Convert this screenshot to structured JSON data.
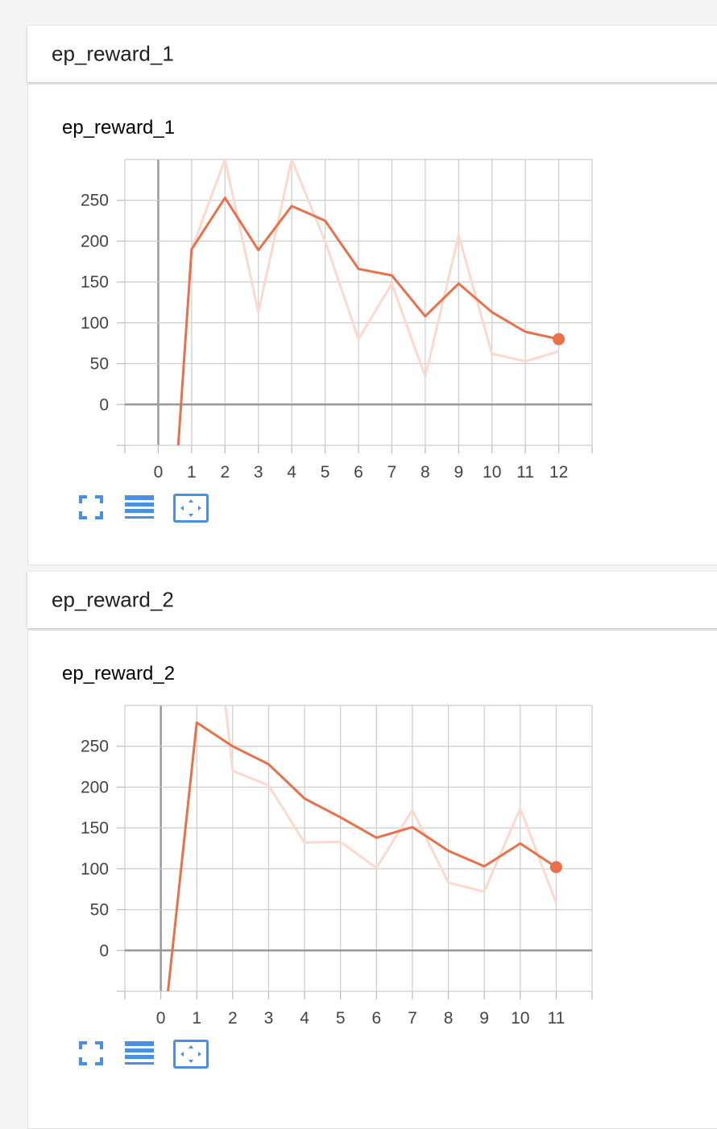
{
  "panels": [
    {
      "group_title": "ep_reward_1",
      "card_title": "ep_reward_1"
    },
    {
      "group_title": "ep_reward_2",
      "card_title": "ep_reward_2"
    }
  ],
  "colors": {
    "smoothed_line": "#e8714a",
    "raw_line": "#fcd9cd",
    "grid": "#cccccc",
    "zero_axis": "#999999",
    "toolbar_icon": "#4a90e2"
  },
  "toolbar_icons": [
    "fullscreen-icon",
    "data-table-icon",
    "fit-domain-icon"
  ],
  "chart_data": [
    {
      "type": "line",
      "title": "ep_reward_1",
      "xlim": [
        -1,
        13
      ],
      "ylim": [
        -50,
        300
      ],
      "x_ticks": [
        0,
        1,
        2,
        3,
        4,
        5,
        6,
        7,
        8,
        9,
        10,
        11,
        12
      ],
      "y_ticks": [
        0,
        50,
        100,
        150,
        200,
        250
      ],
      "series": [
        {
          "role": "smoothed",
          "x": [
            0.6,
            1,
            2,
            3,
            4,
            5,
            6,
            7,
            8,
            9,
            10,
            11,
            12
          ],
          "y": [
            -50,
            190,
            253,
            189,
            243,
            225,
            166,
            158,
            108,
            148,
            113,
            89,
            80
          ]
        },
        {
          "role": "raw",
          "x": [
            1,
            2,
            3,
            4,
            5,
            6,
            7,
            8,
            9,
            10,
            11,
            12
          ],
          "y": [
            190,
            300,
            113,
            300,
            200,
            80,
            148,
            34,
            207,
            62,
            53,
            65
          ]
        }
      ]
    },
    {
      "type": "line",
      "title": "ep_reward_2",
      "xlim": [
        -1,
        12
      ],
      "ylim": [
        -50,
        300
      ],
      "x_ticks": [
        0,
        1,
        2,
        3,
        4,
        5,
        6,
        7,
        8,
        9,
        10,
        11
      ],
      "y_ticks": [
        0,
        50,
        100,
        150,
        200,
        250
      ],
      "series": [
        {
          "role": "smoothed",
          "x": [
            0.2,
            1,
            2,
            3,
            4,
            5,
            6,
            7,
            8,
            9,
            10,
            11
          ],
          "y": [
            -50,
            279,
            250,
            228,
            186,
            163,
            138,
            151,
            122,
            103,
            131,
            102
          ]
        },
        {
          "role": "raw",
          "x": [
            1.8,
            2,
            3,
            4,
            5,
            6,
            7,
            8,
            9,
            10,
            11
          ],
          "y": [
            300,
            220,
            202,
            132,
            133,
            101,
            172,
            83,
            72,
            174,
            58
          ]
        }
      ]
    }
  ]
}
